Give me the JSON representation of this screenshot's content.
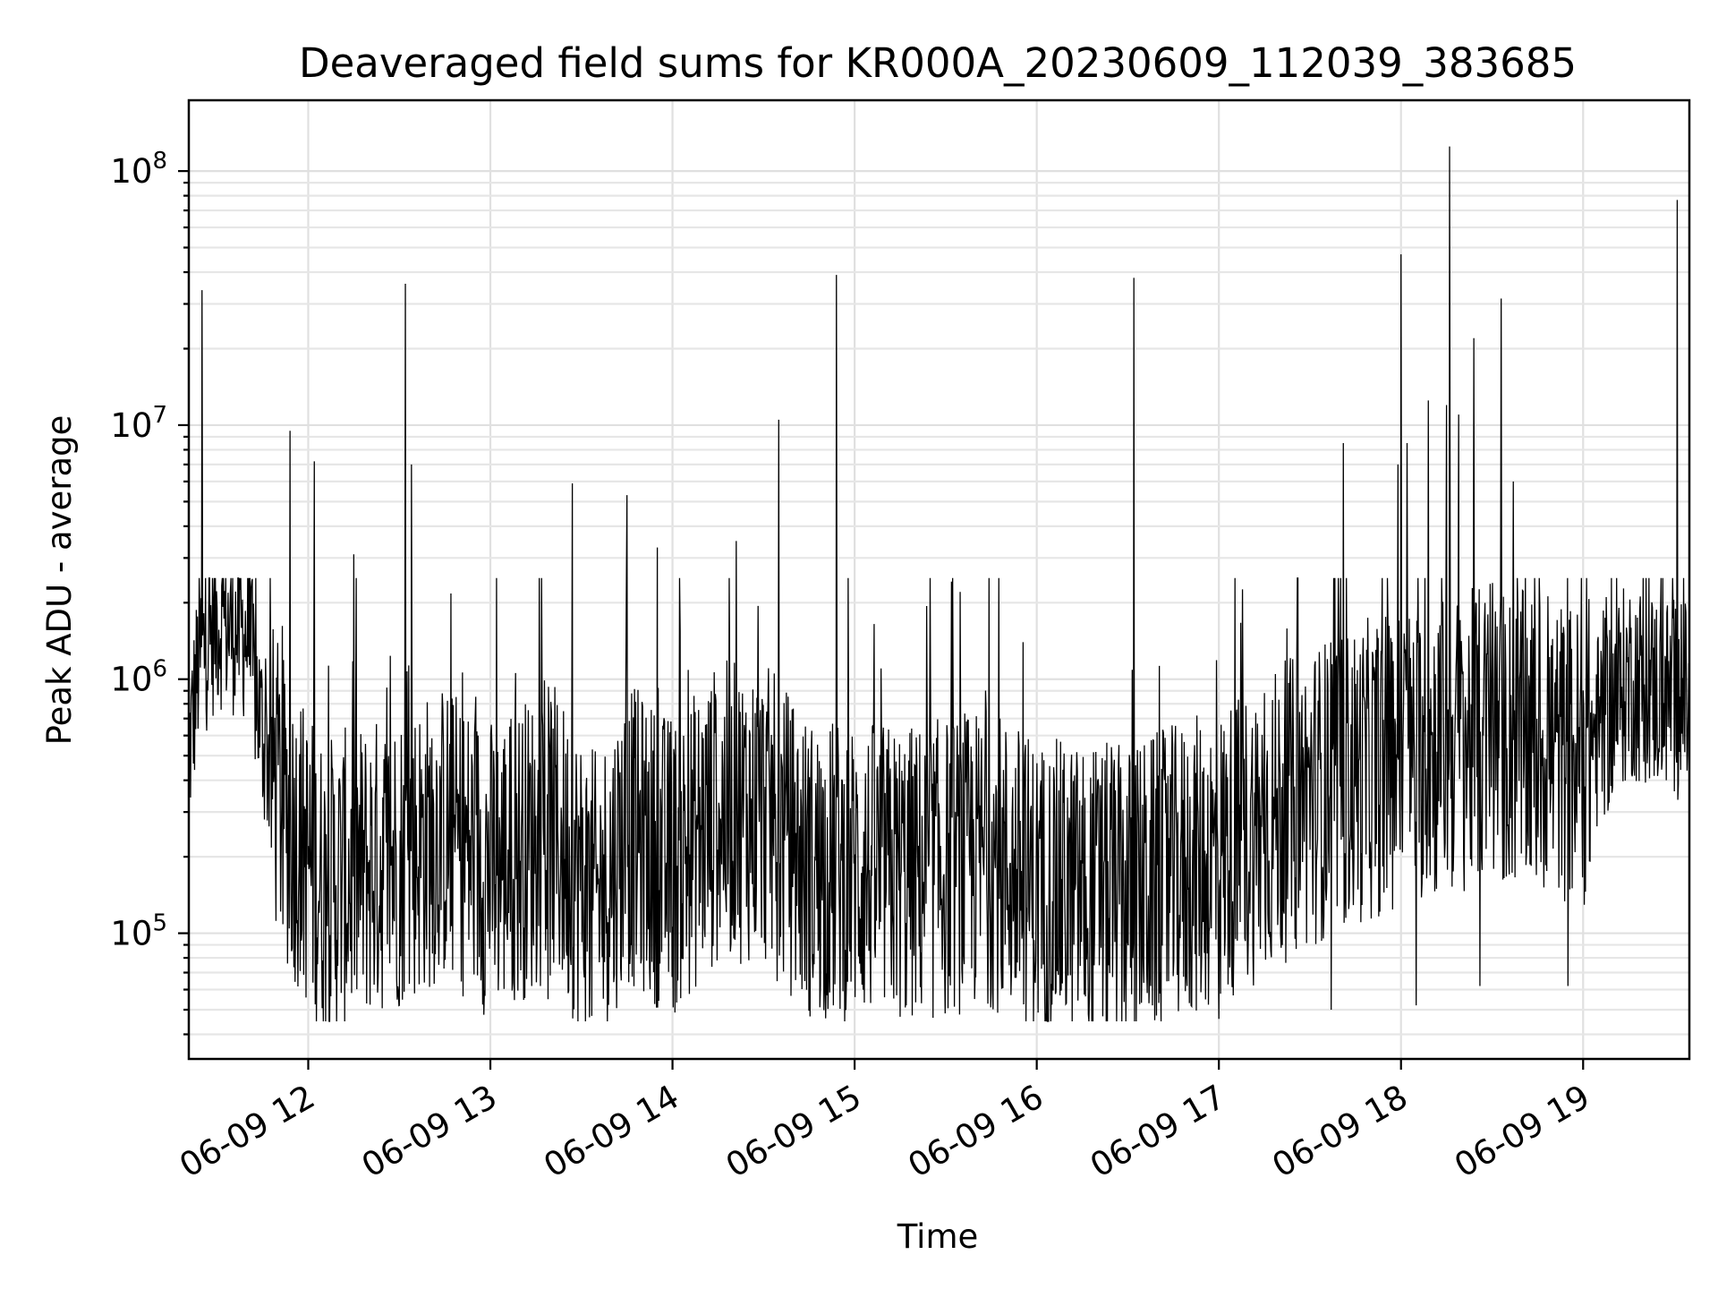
{
  "chart_data": {
    "type": "line",
    "title": "Deaveraged field sums for KR000A_20230609_112039_383685",
    "xlabel": "Time",
    "ylabel": "Peak ADU - average",
    "y_scale": "log",
    "ylim": [
      32000,
      190000000
    ],
    "xlim": [
      "2023-06-09 11:20:39",
      "2023-06-09 19:35:00"
    ],
    "x_tick_labels": [
      "06-09 12",
      "06-09 13",
      "06-09 14",
      "06-09 15",
      "06-09 16",
      "06-09 17",
      "06-09 18",
      "06-09 19"
    ],
    "x_tick_times": [
      "2023-06-09 12:00",
      "2023-06-09 13:00",
      "2023-06-09 14:00",
      "2023-06-09 15:00",
      "2023-06-09 16:00",
      "2023-06-09 17:00",
      "2023-06-09 18:00",
      "2023-06-09 19:00"
    ],
    "y_ticks": [
      {
        "base": "10",
        "exp": "5",
        "value": 100000
      },
      {
        "base": "10",
        "exp": "6",
        "value": 1000000
      },
      {
        "base": "10",
        "exp": "7",
        "value": 10000000
      },
      {
        "base": "10",
        "exp": "8",
        "value": 100000000
      }
    ],
    "grid": true,
    "line_color": "#000000",
    "series": [
      {
        "baseline": [
          [
            "2023-06-09 11:20:39",
            500000
          ],
          [
            "2023-06-09 11:24",
            1200000
          ],
          [
            "2023-06-09 11:30",
            1700000
          ],
          [
            "2023-06-09 11:40",
            1500000
          ],
          [
            "2023-06-09 11:45",
            600000
          ],
          [
            "2023-06-09 11:52",
            300000
          ],
          [
            "2023-06-09 12:05",
            150000
          ],
          [
            "2023-06-09 12:30",
            200000
          ],
          [
            "2023-06-09 12:45",
            250000
          ],
          [
            "2023-06-09 13:00",
            180000
          ],
          [
            "2023-06-09 13:20",
            250000
          ],
          [
            "2023-06-09 13:35",
            130000
          ],
          [
            "2023-06-09 13:45",
            250000
          ],
          [
            "2023-06-09 14:00",
            180000
          ],
          [
            "2023-06-09 14:15",
            300000
          ],
          [
            "2023-06-09 14:30",
            300000
          ],
          [
            "2023-06-09 14:45",
            180000
          ],
          [
            "2023-06-09 15:20",
            170000
          ],
          [
            "2023-06-09 15:45",
            200000
          ],
          [
            "2023-06-09 16:00",
            150000
          ],
          [
            "2023-06-09 16:30",
            140000
          ],
          [
            "2023-06-09 17:00",
            200000
          ],
          [
            "2023-06-09 17:30",
            350000
          ],
          [
            "2023-06-09 18:00",
            500000
          ],
          [
            "2023-06-09 18:30",
            600000
          ],
          [
            "2023-06-09 19:00",
            500000
          ],
          [
            "2023-06-09 19:15",
            1000000
          ],
          [
            "2023-06-09 19:35",
            800000
          ]
        ],
        "spikes": [
          [
            "2023-06-09 11:25",
            34000000
          ],
          [
            "2023-06-09 11:54",
            9500000
          ],
          [
            "2023-06-09 12:02",
            7200000
          ],
          [
            "2023-06-09 12:15",
            3100000
          ],
          [
            "2023-06-09 12:32",
            36000000
          ],
          [
            "2023-06-09 12:34",
            7000000
          ],
          [
            "2023-06-09 13:27",
            5900000
          ],
          [
            "2023-06-09 13:45",
            5300000
          ],
          [
            "2023-06-09 13:55",
            3300000
          ],
          [
            "2023-06-09 14:21",
            3500000
          ],
          [
            "2023-06-09 14:35",
            10500000
          ],
          [
            "2023-06-09 14:54",
            39000000
          ],
          [
            "2023-06-09 16:32",
            38000000
          ],
          [
            "2023-06-09 17:37",
            5600000
          ],
          [
            "2023-06-09 17:41",
            8500000
          ],
          [
            "2023-06-09 17:59",
            7000000
          ],
          [
            "2023-06-09 18:00",
            47000000
          ],
          [
            "2023-06-09 18:02",
            8500000
          ],
          [
            "2023-06-09 18:09",
            12500000
          ],
          [
            "2023-06-09 18:15",
            12000000
          ],
          [
            "2023-06-09 18:16",
            125000000
          ],
          [
            "2023-06-09 18:19",
            11000000
          ],
          [
            "2023-06-09 18:24",
            22000000
          ],
          [
            "2023-06-09 18:33",
            31500000
          ],
          [
            "2023-06-09 18:37",
            6000000
          ],
          [
            "2023-06-09 19:31",
            77000000
          ]
        ],
        "dips": [
          [
            "2023-06-09 12:30",
            52000
          ],
          [
            "2023-06-09 13:19",
            55000
          ],
          [
            "2023-06-09 14:53",
            52000
          ],
          [
            "2023-06-09 15:17",
            52000
          ],
          [
            "2023-06-09 16:17",
            48000
          ],
          [
            "2023-06-09 17:00",
            46000
          ],
          [
            "2023-06-09 17:37",
            50000
          ],
          [
            "2023-06-09 18:05",
            52000
          ],
          [
            "2023-06-09 18:26",
            62000
          ],
          [
            "2023-06-09 18:55",
            62000
          ]
        ]
      }
    ]
  }
}
